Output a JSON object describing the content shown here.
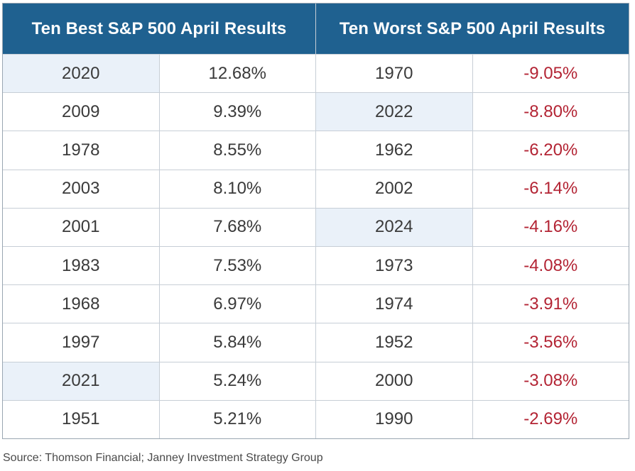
{
  "chart_data": {
    "type": "table",
    "tables": [
      {
        "title": "Ten Best S&P 500 April Results",
        "rows": [
          {
            "year": "2020",
            "return": "12.68%",
            "highlight": true
          },
          {
            "year": "2009",
            "return": "9.39%",
            "highlight": false
          },
          {
            "year": "1978",
            "return": "8.55%",
            "highlight": false
          },
          {
            "year": "2003",
            "return": "8.10%",
            "highlight": false
          },
          {
            "year": "2001",
            "return": "7.68%",
            "highlight": false
          },
          {
            "year": "1983",
            "return": "7.53%",
            "highlight": false
          },
          {
            "year": "1968",
            "return": "6.97%",
            "highlight": false
          },
          {
            "year": "1997",
            "return": "5.84%",
            "highlight": false
          },
          {
            "year": "2021",
            "return": "5.24%",
            "highlight": true
          },
          {
            "year": "1951",
            "return": "5.21%",
            "highlight": false
          }
        ]
      },
      {
        "title": "Ten Worst S&P 500 April Results",
        "rows": [
          {
            "year": "1970",
            "return": "-9.05%",
            "highlight": false
          },
          {
            "year": "2022",
            "return": "-8.80%",
            "highlight": true
          },
          {
            "year": "1962",
            "return": "-6.20%",
            "highlight": false
          },
          {
            "year": "2002",
            "return": "-6.14%",
            "highlight": false
          },
          {
            "year": "2024",
            "return": "-4.16%",
            "highlight": true
          },
          {
            "year": "1973",
            "return": "-4.08%",
            "highlight": false
          },
          {
            "year": "1974",
            "return": "-3.91%",
            "highlight": false
          },
          {
            "year": "1952",
            "return": "-3.56%",
            "highlight": false
          },
          {
            "year": "2000",
            "return": "-3.08%",
            "highlight": false
          },
          {
            "year": "1990",
            "return": "-2.69%",
            "highlight": false
          }
        ]
      }
    ],
    "source": "Source: Thomson Financial; Janney Investment Strategy Group"
  },
  "colors": {
    "header_bg": "#1f6190",
    "highlight_bg": "#eaf1f9",
    "negative_text": "#b32434",
    "grid": "#c7ced6"
  }
}
